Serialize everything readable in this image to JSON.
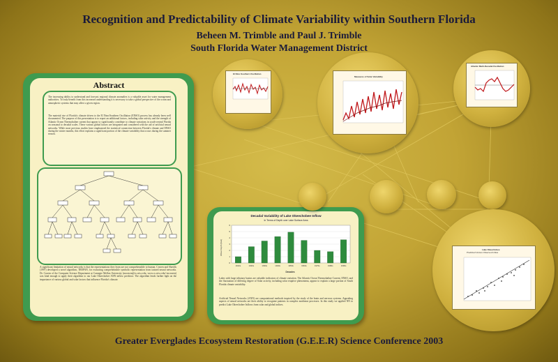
{
  "header": {
    "title": "Recognition and Predictability of Climate Variability within Southern Florida",
    "authors": "Beheen  M. Trimble and Paul J. Trimble",
    "affiliation": "South Florida Water Management District"
  },
  "footer": "Greater Everglades Ecosystem Restoration (G.E.E.R) Science Conference 2003",
  "abstract": {
    "heading": "Abstract",
    "paragraph1": "The increasing ability to understand and forecast regional climate anomalies is a valuable asset for water management authorities. To truly benefit from this increased understanding it is necessary to take a global perspective of the ocean and atmospheric systems that may affect a given region.",
    "paragraph2": "The material rise of Florida's climate driven to the El Nino/Southern Oscillation (ENSO) process has already been well documented. The purpose of this presentation is to report an additional factors, including solar activity and the strength of Atlantic Ocean Thermohaline current that appear to significantly contribute to climate variations in south-central Florida on seasonal to decadal scales. These various global factors are integrated and considered with the aid of artificial neural networks. While most previous studies have emphasized the statistical connection between Florida's climate and ENSO during the winter months, this effort explains a significant portion of the climate variability that occurs during the summer season.",
    "paragraph3": "A significant limitation of neural networks is that the representations they learn are not comprehensible to human. Craven and Shavlik (1997) developed a novel algorithm, TREPAN, for extracting comprehensible symbolic representation from trained neural networks. Dr. Craven of the Computer Science Department at Carnegie Mellon University (mcraven@cs.wisc.edu, www.cs.wisc.edu/~mcraven) was kind enough to apply their algorithm to our Lake Okeechobee ANN inflow predictor. The algorithm lends further light on the importance of various global and solar factors that influence Florida's climate."
  },
  "bar_panel": {
    "title": "Decadal Variability of Lake Okeechobee Inflow",
    "subtitle": "In Terms of Depth over Lake Surface Area",
    "paragraph1": "Lakes with large tributary basins are valuable indicators of climate variation. The Atlantic Ocean Thermohaline Current, ENSO, and the fluctuation of differing degree of Solar activity, including solar eruptive phenomena, appear to explain a large portion of South Florida climate variability.",
    "paragraph2": "Artificial Neural Networks (ANN) are computational methods inspired by the study of the brain and nervous systems. Appealing aspects of neural networks are their ability to recognize patterns in complex nonlinear processes. In this study we applied NN to predict Lake Okeechobee Inflows from solar and global indices."
  },
  "chart_data": {
    "type": "bar",
    "title": "Decadal Variability of Lake Okeechobee Inflow",
    "subtitle": "In Terms of Depth over Lake Surface Area",
    "xlabel": "Decades",
    "ylabel": "Inflow Depth (feet)",
    "categories": [
      "1910s",
      "1920s",
      "1930s",
      "1940s",
      "1950s",
      "1960s",
      "1970s",
      "1980s",
      "1990s"
    ],
    "values": [
      1.0,
      2.6,
      3.5,
      4.2,
      4.9,
      3.6,
      2.0,
      1.8,
      3.7
    ],
    "ylim": [
      0,
      6
    ],
    "color": "#2e8b3d"
  },
  "orbs": {
    "enso": {
      "title": "El Nino Southern Oscillation"
    },
    "solar": {
      "title": "Measures of Solar Variability"
    },
    "amo": {
      "title": "Atlantic Multi-Decadal Oscillation"
    },
    "scatter": {
      "title": "Lake Okeechobee",
      "subtitle": "Predicted Versus Observed Inflow"
    }
  },
  "colors": {
    "panel_green": "#3f9b4f",
    "cream": "#f8f1c4",
    "title_ink": "#1a1a3a",
    "gold": "#c2a435"
  }
}
